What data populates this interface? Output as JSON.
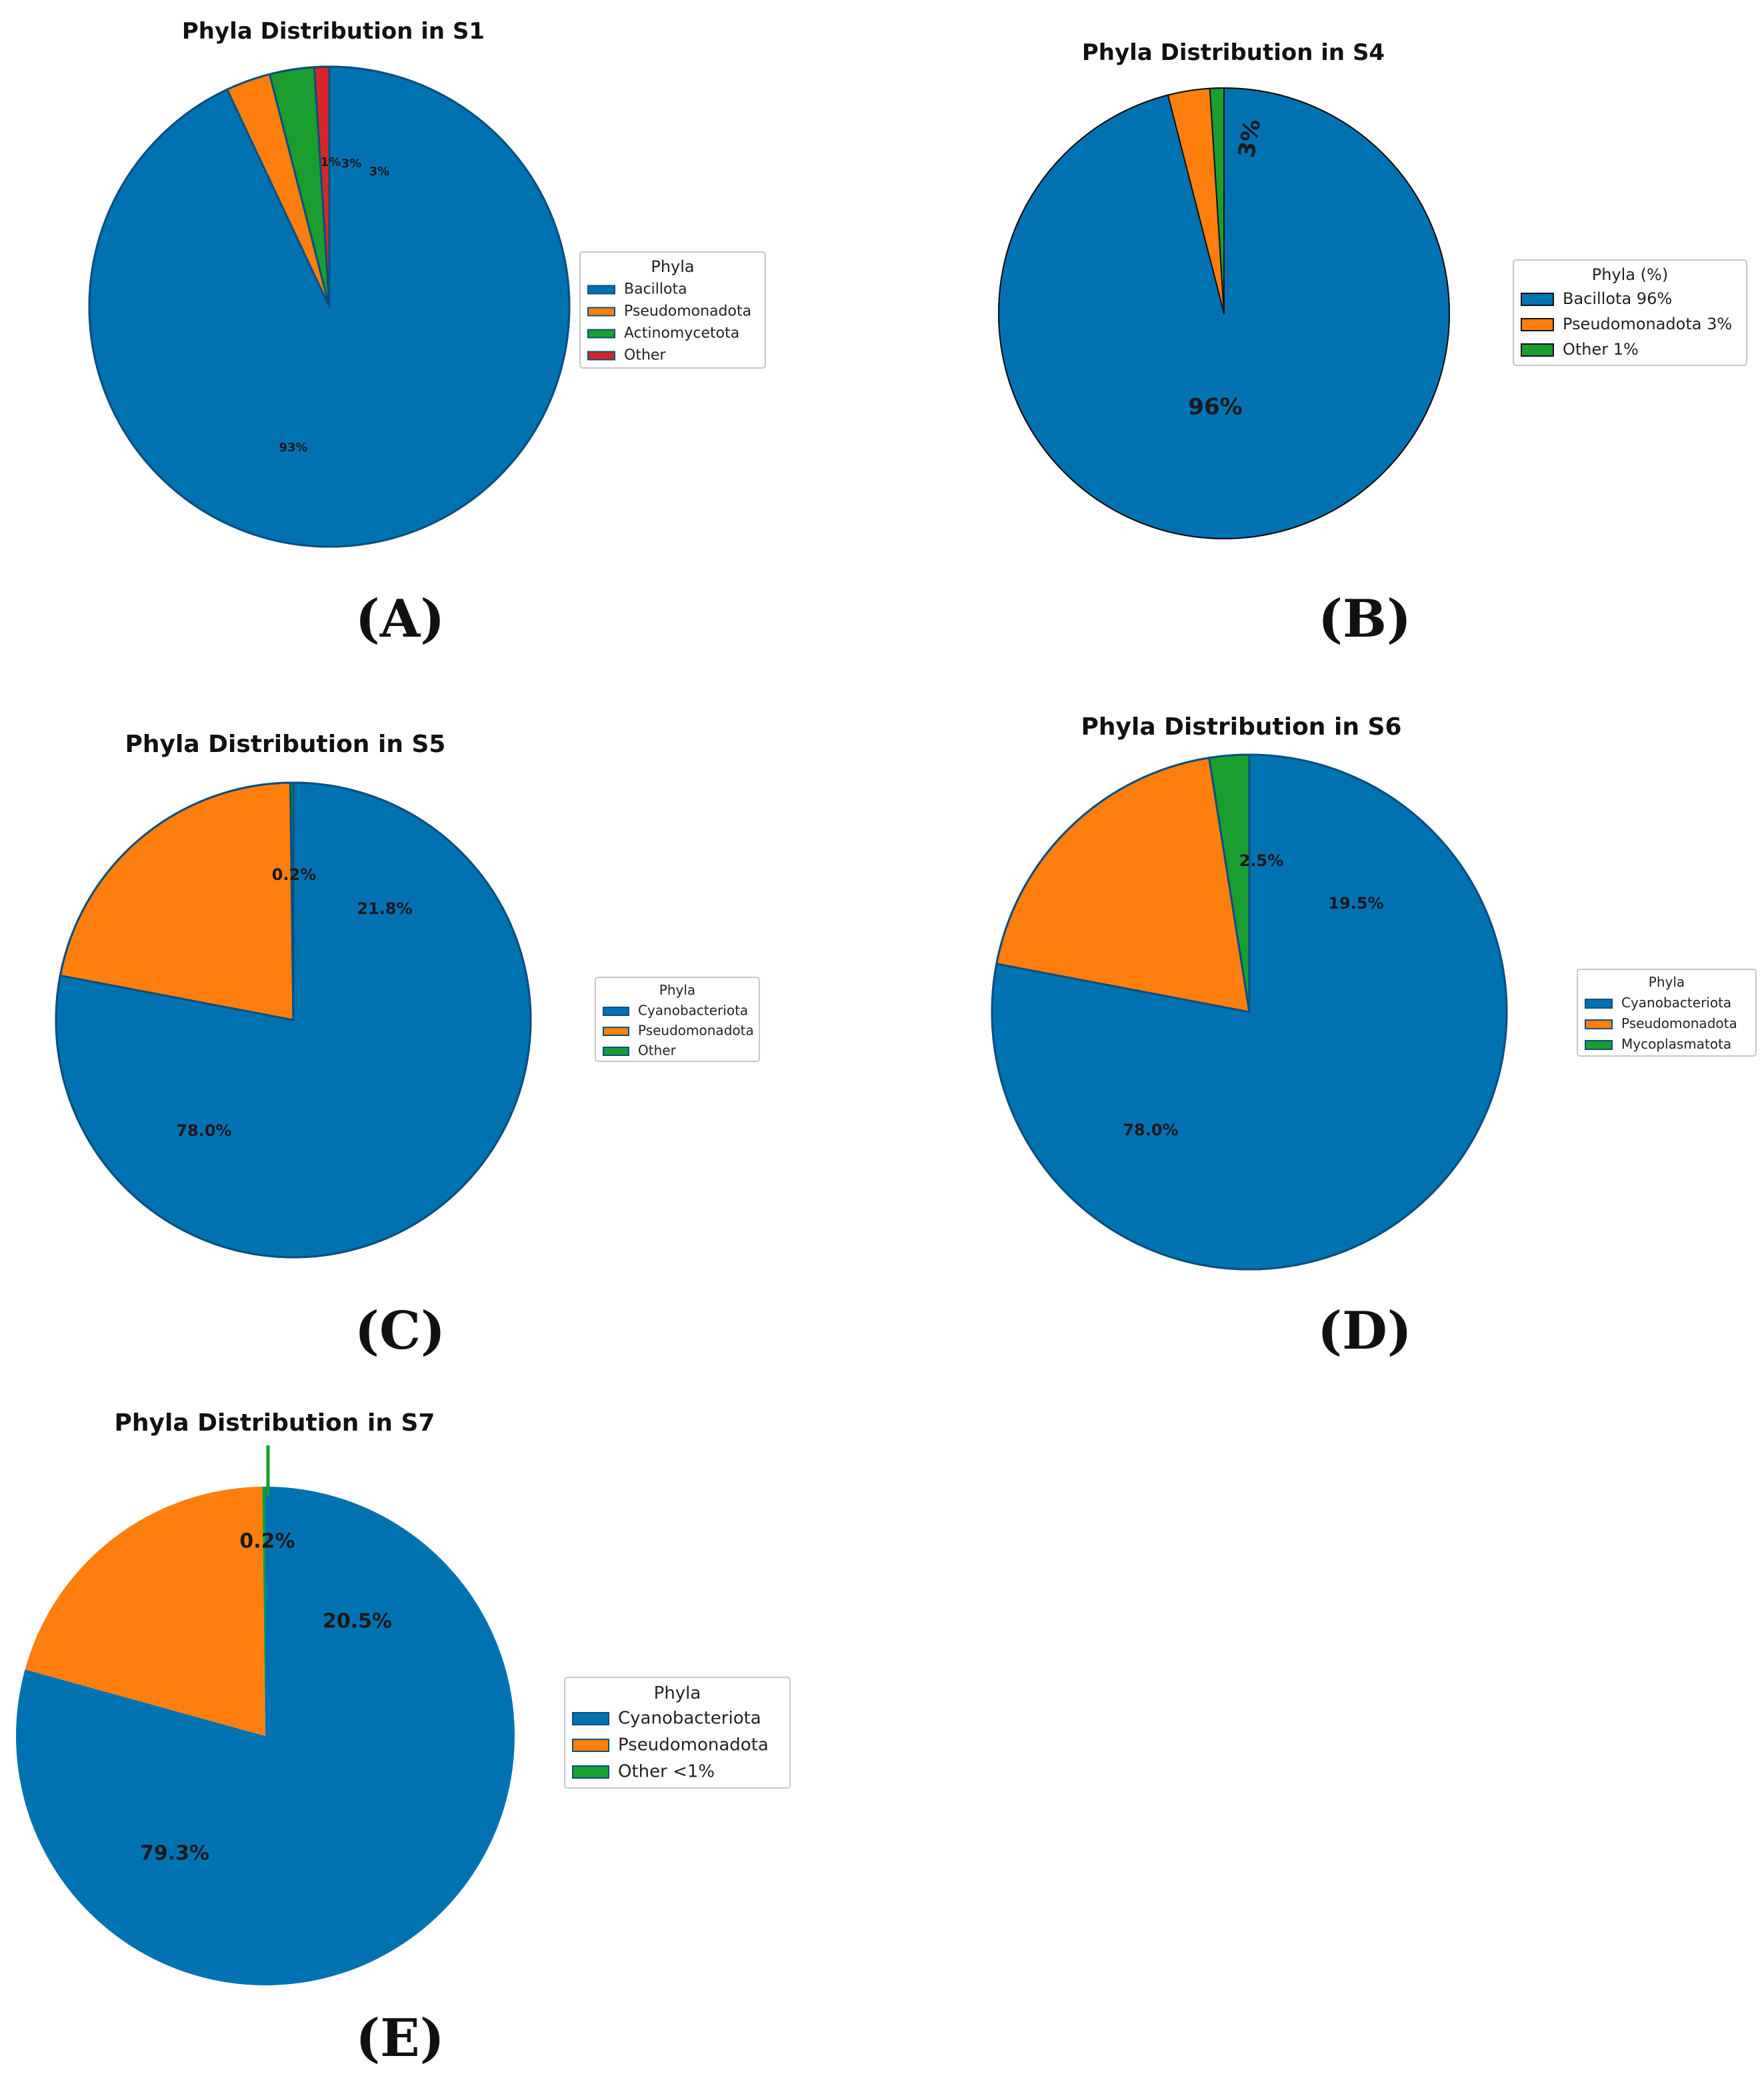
{
  "colors": {
    "blue": "#0072b2",
    "orange": "#ff7f0e",
    "green": "#1a9e2f",
    "red": "#d62728",
    "edge": "#0b4f7f"
  },
  "chart_data": [
    {
      "type": "pie",
      "panel_label": "(A)",
      "title": "Phyla  Distribution in S1",
      "legend_title": "Phyla",
      "legend_placement": "right",
      "start_angle_deg": 90,
      "direction": "clockwise",
      "slices": [
        {
          "name": "Bacillota",
          "value": 93,
          "label": "93%",
          "color": "#0072b2"
        },
        {
          "name": "Pseudomonadota",
          "value": 3,
          "label": "3%",
          "color": "#ff7f0e"
        },
        {
          "name": "Actinomycetota",
          "value": 3,
          "label": "3%",
          "color": "#1a9e2f"
        },
        {
          "name": "Other",
          "value": 1,
          "label": "1%",
          "color": "#d62728"
        }
      ]
    },
    {
      "type": "pie",
      "panel_label": "(B)",
      "title": "Phyla Distribution in S4",
      "legend_title": "Phyla (%)",
      "legend_placement": "right",
      "start_angle_deg": 90,
      "direction": "clockwise",
      "slices": [
        {
          "name": "Bacillota 96%",
          "value": 96,
          "label": "96%",
          "color": "#0072b2"
        },
        {
          "name": "Pseudomonadota 3%",
          "value": 3,
          "label": "3%",
          "color": "#ff7f0e"
        },
        {
          "name": "Other 1%",
          "value": 1,
          "label": "",
          "color": "#1a9e2f"
        }
      ]
    },
    {
      "type": "pie",
      "panel_label": "(C)",
      "title": "Phyla Distribution in S5",
      "legend_title": "Phyla",
      "legend_placement": "right",
      "start_angle_deg": 90,
      "direction": "clockwise",
      "slices": [
        {
          "name": "Cyanobacteriota",
          "value": 78.0,
          "label": "78.0%",
          "color": "#0072b2"
        },
        {
          "name": "Pseudomonadota",
          "value": 21.8,
          "label": "21.8%",
          "color": "#ff7f0e"
        },
        {
          "name": "Other",
          "value": 0.2,
          "label": "0.2%",
          "color": "#1a9e2f"
        }
      ]
    },
    {
      "type": "pie",
      "panel_label": "(D)",
      "title": "Phyla Distribution in S6",
      "legend_title": "Phyla",
      "legend_placement": "right",
      "start_angle_deg": 90,
      "direction": "clockwise",
      "slices": [
        {
          "name": "Cyanobacteriota",
          "value": 78.0,
          "label": "78.0%",
          "color": "#0072b2"
        },
        {
          "name": "Pseudomonadota",
          "value": 19.5,
          "label": "19.5%",
          "color": "#ff7f0e"
        },
        {
          "name": "Mycoplasmatota",
          "value": 2.5,
          "label": "2.5%",
          "color": "#1a9e2f"
        }
      ]
    },
    {
      "type": "pie",
      "panel_label": "(E)",
      "title": "Phyla Distribution in S7",
      "legend_title": "Phyla",
      "legend_placement": "right",
      "start_angle_deg": 90,
      "direction": "clockwise",
      "slices": [
        {
          "name": "Cyanobacteriota",
          "value": 79.3,
          "label": "79.3%",
          "color": "#0072b2"
        },
        {
          "name": "Pseudomonadota",
          "value": 20.5,
          "label": "20.5%",
          "color": "#ff7f0e"
        },
        {
          "name": "Other <1%",
          "value": 0.2,
          "label": "0.2%",
          "color": "#1a9e2f"
        }
      ]
    }
  ]
}
